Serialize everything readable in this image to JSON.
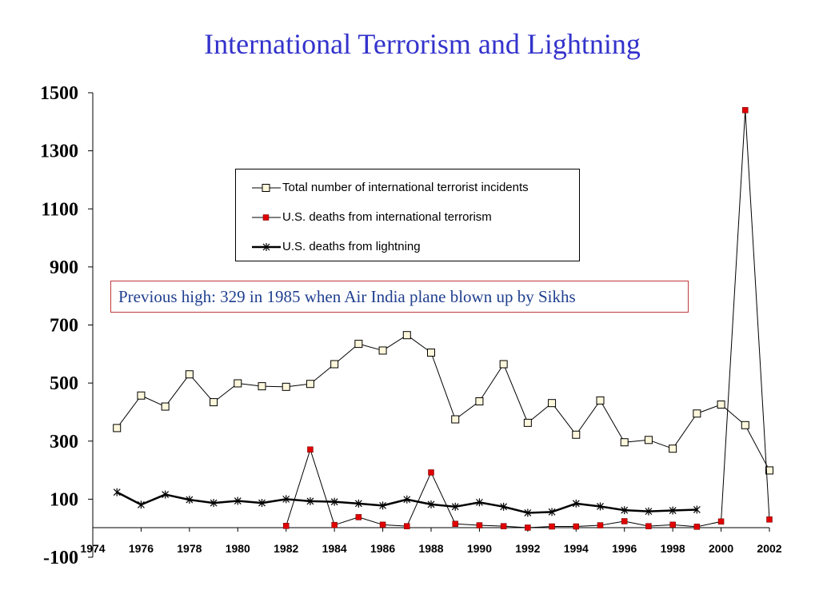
{
  "slide": {
    "title": "International Terrorism and Lightning"
  },
  "annotation": {
    "text": "Previous high: 329 in 1985 when Air India plane blown up by Sikhs"
  },
  "chart_data": {
    "type": "line",
    "title": "International Terrorism and Lightning",
    "xlabel": "",
    "ylabel": "",
    "ylim": [
      -100,
      1500
    ],
    "xlim": [
      1974,
      2002
    ],
    "y_ticks": [
      "1500",
      "1300",
      "1100",
      "900",
      "700",
      "500",
      "300",
      "100",
      "-100"
    ],
    "x_ticks": [
      "1974",
      "1976",
      "1978",
      "1980",
      "1982",
      "1984",
      "1986",
      "1988",
      "1990",
      "1992",
      "1994",
      "1996",
      "1998",
      "2000",
      "2002"
    ],
    "grid": false,
    "legend_position": "upper-center",
    "series": [
      {
        "name": "Total number of international terrorist incidents",
        "marker": "open-square",
        "color": "#000000",
        "x": [
          1975,
          1976,
          1977,
          1978,
          1979,
          1980,
          1981,
          1982,
          1983,
          1984,
          1985,
          1986,
          1987,
          1988,
          1989,
          1990,
          1991,
          1992,
          1993,
          1994,
          1995,
          1996,
          1997,
          1998,
          1999,
          2000,
          2001,
          2002
        ],
        "values": [
          345,
          457,
          419,
          530,
          434,
          499,
          489,
          487,
          497,
          565,
          635,
          612,
          665,
          605,
          375,
          437,
          565,
          363,
          431,
          322,
          440,
          296,
          304,
          274,
          395,
          426,
          355,
          199
        ]
      },
      {
        "name": "U.S. deaths from international terrorism",
        "marker": "filled-square",
        "color": "#cc0000",
        "x": [
          1982,
          1983,
          1984,
          1985,
          1986,
          1987,
          1988,
          1989,
          1990,
          1991,
          1992,
          1993,
          1994,
          1995,
          1996,
          1997,
          1998,
          1999,
          2000,
          2001,
          2002
        ],
        "values": [
          8,
          271,
          11,
          38,
          12,
          7,
          192,
          15,
          10,
          7,
          2,
          6,
          6,
          10,
          24,
          7,
          12,
          5,
          23,
          1440,
          30
        ]
      },
      {
        "name": "U.S. deaths from lightning",
        "marker": "star",
        "color": "#000000",
        "x": [
          1975,
          1976,
          1977,
          1978,
          1979,
          1980,
          1981,
          1982,
          1983,
          1984,
          1985,
          1986,
          1987,
          1988,
          1989,
          1990,
          1991,
          1992,
          1993,
          1994,
          1995,
          1996,
          1997,
          1998,
          1999
        ],
        "values": [
          124,
          81,
          116,
          98,
          87,
          94,
          87,
          100,
          93,
          91,
          85,
          78,
          99,
          82,
          74,
          89,
          74,
          53,
          56,
          85,
          75,
          62,
          58,
          61,
          64
        ]
      }
    ]
  }
}
